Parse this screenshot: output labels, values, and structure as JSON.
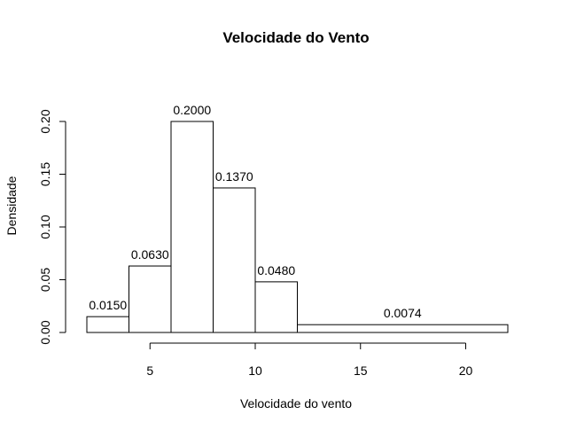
{
  "chart_data": {
    "type": "bar",
    "subtype": "histogram",
    "title": "Velocidade do Vento",
    "xlabel": "Velocidade do vento",
    "ylabel": "Densidade",
    "bins": [
      {
        "start": 2,
        "end": 4,
        "value": 0.015,
        "label": "0.0150"
      },
      {
        "start": 4,
        "end": 6,
        "value": 0.063,
        "label": "0.0630"
      },
      {
        "start": 6,
        "end": 8,
        "value": 0.2,
        "label": "0.2000"
      },
      {
        "start": 8,
        "end": 10,
        "value": 0.137,
        "label": "0.1370"
      },
      {
        "start": 10,
        "end": 12,
        "value": 0.048,
        "label": "0.0480"
      },
      {
        "start": 12,
        "end": 22,
        "value": 0.0074,
        "label": "0.0074"
      }
    ],
    "xticks": [
      {
        "value": 5,
        "label": "5"
      },
      {
        "value": 10,
        "label": "10"
      },
      {
        "value": 15,
        "label": "15"
      },
      {
        "value": 20,
        "label": "20"
      }
    ],
    "yticks": [
      {
        "value": 0,
        "label": "0.00"
      },
      {
        "value": 0.05,
        "label": "0.05"
      },
      {
        "value": 0.1,
        "label": "0.10"
      },
      {
        "value": 0.15,
        "label": "0.15"
      },
      {
        "value": 0.2,
        "label": "0.20"
      }
    ],
    "xlim": [
      2,
      22
    ],
    "ylim": [
      0,
      0.2
    ],
    "grid": false,
    "legend": "none",
    "bar_fill": "#ffffff",
    "bar_stroke": "#000000"
  }
}
